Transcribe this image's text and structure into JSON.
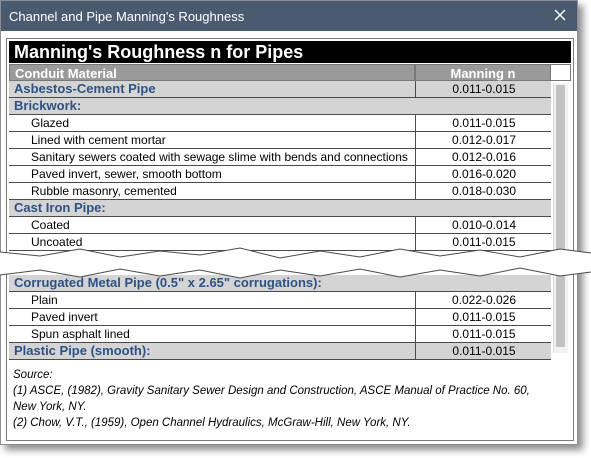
{
  "window": {
    "title": "Channel and Pipe Manning's Roughness"
  },
  "table": {
    "heading": "Manning's Roughness n for Pipes",
    "col_material": "Conduit Material",
    "col_value": "Manning n",
    "rows_top": [
      {
        "type": "group",
        "name": "Asbestos-Cement Pipe",
        "value": "0.011-0.015"
      },
      {
        "type": "group",
        "name": "Brickwork:",
        "value": ""
      },
      {
        "type": "item",
        "name": "Glazed",
        "value": "0.011-0.015"
      },
      {
        "type": "item",
        "name": "Lined with cement mortar",
        "value": "0.012-0.017"
      },
      {
        "type": "item",
        "name": "Sanitary sewers coated with sewage slime with bends and connections",
        "value": "0.012-0.016"
      },
      {
        "type": "item",
        "name": "Paved invert, sewer, smooth bottom",
        "value": "0.016-0.020"
      },
      {
        "type": "item",
        "name": "Rubble masonry, cemented",
        "value": "0.018-0.030"
      },
      {
        "type": "group",
        "name": "Cast Iron Pipe:",
        "value": ""
      },
      {
        "type": "item",
        "name": "Coated",
        "value": "0.010-0.014"
      },
      {
        "type": "item",
        "name": "Uncoated",
        "value": "0.011-0.015"
      }
    ],
    "rows_bottom": [
      {
        "type": "group",
        "name": "Corrugated Metal Pipe (0.5\" x 2.65\" corrugations):",
        "value": ""
      },
      {
        "type": "item",
        "name": "Plain",
        "value": "0.022-0.026"
      },
      {
        "type": "item",
        "name": "Paved invert",
        "value": "0.011-0.015"
      },
      {
        "type": "item",
        "name": "Spun asphalt lined",
        "value": "0.011-0.015"
      },
      {
        "type": "group",
        "name": "Plastic Pipe (smooth):",
        "value": "0.011-0.015"
      }
    ]
  },
  "source": {
    "label": "Source:",
    "line1": "(1) ASCE, (1982), Gravity Sanitary Sewer Design and Construction, ASCE Manual of Practice No. 60,",
    "line2": "New York, NY.",
    "line3": "(2) Chow, V.T., (1959), Open Channel Hydraulics, McGraw-Hill, New York, NY."
  },
  "icons": {
    "close": "close-icon"
  }
}
